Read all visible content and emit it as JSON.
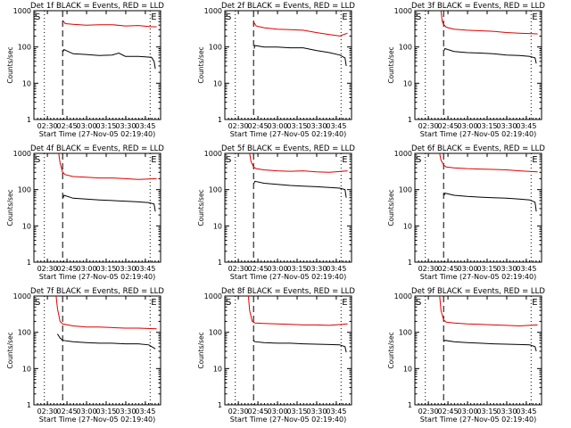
{
  "figure": {
    "ylabel": "Counts/sec",
    "xlabel": "Start Time (27-Nov-05 02:19:40)",
    "x_tick_labels": [
      "02:30",
      "02:45",
      "03:00",
      "03:15",
      "03:30",
      "03:45"
    ],
    "y_tick_labels": [
      "1",
      "10",
      "100",
      "1000"
    ],
    "marker_start": "S",
    "marker_end": "E",
    "colors": {
      "events": "#000000",
      "lld": "#dd0000",
      "axes": "#000000"
    }
  },
  "chart_data": [
    {
      "type": "line",
      "title": "Det 1f BLACK = Events, RED = LLD",
      "xlabel": "Start Time (27-Nov-05 02:19:40)",
      "ylabel": "Counts/sec",
      "x_unit": "minutes after 02:19:40",
      "xlim": [
        0,
        97
      ],
      "ylim": [
        1,
        1000
      ],
      "yscale": "log",
      "dotted_vlines": [
        8,
        89
      ],
      "dashed_vlines": [
        22
      ],
      "series": [
        {
          "x": [
            22,
            22.5,
            24,
            30,
            40,
            50,
            60,
            70,
            80,
            90,
            94
          ],
          "y": [
            480,
            520,
            440,
            420,
            400,
            410,
            410,
            380,
            390,
            360,
            360
          ]
        },
        {
          "x": [
            22.5,
            23,
            30,
            40,
            50,
            60,
            65,
            70,
            80,
            90,
            92,
            93
          ],
          "y": [
            75,
            85,
            65,
            62,
            58,
            60,
            68,
            55,
            55,
            52,
            40,
            25
          ]
        }
      ]
    },
    {
      "type": "line",
      "title": "Det 2f BLACK = Events, RED = LLD",
      "xlabel": "Start Time (27-Nov-05 02:19:40)",
      "ylabel": "Counts/sec",
      "x_unit": "minutes after 02:19:40",
      "xlim": [
        0,
        97
      ],
      "ylim": [
        1,
        1000
      ],
      "yscale": "log",
      "dotted_vlines": [
        8,
        89
      ],
      "dashed_vlines": [
        22
      ],
      "series": [
        {
          "x": [
            22,
            22.5,
            24,
            30,
            40,
            50,
            60,
            70,
            80,
            88,
            94
          ],
          "y": [
            400,
            460,
            380,
            340,
            310,
            300,
            290,
            250,
            220,
            200,
            240
          ]
        },
        {
          "x": [
            22.5,
            23,
            30,
            40,
            50,
            60,
            70,
            80,
            88,
            92,
            93
          ],
          "y": [
            90,
            110,
            100,
            100,
            95,
            95,
            80,
            70,
            60,
            50,
            30
          ]
        }
      ]
    },
    {
      "type": "line",
      "title": "Det 3f BLACK = Events, RED = LLD",
      "xlabel": "Start Time (27-Nov-05 02:19:40)",
      "ylabel": "Counts/sec",
      "x_unit": "minutes after 02:19:40",
      "xlim": [
        0,
        97
      ],
      "ylim": [
        1,
        1000
      ],
      "yscale": "log",
      "dotted_vlines": [
        8,
        89
      ],
      "dashed_vlines": [
        22
      ],
      "series": [
        {
          "x": [
            20,
            21,
            22,
            24,
            30,
            40,
            50,
            60,
            70,
            80,
            94
          ],
          "y": [
            1000,
            500,
            420,
            350,
            310,
            290,
            280,
            270,
            250,
            240,
            230
          ]
        },
        {
          "x": [
            22.5,
            23,
            30,
            40,
            50,
            60,
            70,
            80,
            88,
            92,
            93
          ],
          "y": [
            80,
            90,
            75,
            70,
            68,
            65,
            60,
            58,
            55,
            50,
            35
          ]
        }
      ]
    },
    {
      "type": "line",
      "title": "Det 4f BLACK = Events, RED = LLD",
      "xlabel": "Start Time (27-Nov-05 02:19:40)",
      "ylabel": "Counts/sec",
      "x_unit": "minutes after 02:19:40",
      "xlim": [
        0,
        97
      ],
      "ylim": [
        1,
        1000
      ],
      "yscale": "log",
      "dotted_vlines": [
        8,
        89
      ],
      "dashed_vlines": [
        22
      ],
      "series": [
        {
          "x": [
            19,
            20,
            22,
            24,
            30,
            40,
            50,
            60,
            70,
            80,
            94
          ],
          "y": [
            1000,
            550,
            300,
            260,
            230,
            220,
            210,
            210,
            200,
            190,
            200
          ]
        },
        {
          "x": [
            22.5,
            23,
            30,
            40,
            50,
            60,
            70,
            80,
            88,
            92,
            93
          ],
          "y": [
            60,
            70,
            58,
            55,
            52,
            50,
            48,
            46,
            44,
            40,
            25
          ]
        }
      ]
    },
    {
      "type": "line",
      "title": "Det 5f BLACK = Events, RED = LLD",
      "xlabel": "Start Time (27-Nov-05 02:19:40)",
      "ylabel": "Counts/sec",
      "x_unit": "minutes after 02:19:40",
      "xlim": [
        0,
        97
      ],
      "ylim": [
        1,
        1000
      ],
      "yscale": "log",
      "dotted_vlines": [
        8,
        89
      ],
      "dashed_vlines": [
        22
      ],
      "series": [
        {
          "x": [
            19,
            20,
            22,
            24,
            30,
            40,
            50,
            60,
            70,
            80,
            94
          ],
          "y": [
            1000,
            600,
            420,
            380,
            350,
            330,
            320,
            330,
            310,
            300,
            330
          ]
        },
        {
          "x": [
            22.5,
            23,
            30,
            40,
            50,
            60,
            70,
            80,
            88,
            92,
            93
          ],
          "y": [
            150,
            170,
            150,
            140,
            130,
            125,
            120,
            115,
            110,
            100,
            60
          ]
        }
      ]
    },
    {
      "type": "line",
      "title": "Det 6f BLACK = Events, RED = LLD",
      "xlabel": "Start Time (27-Nov-05 02:19:40)",
      "ylabel": "Counts/sec",
      "x_unit": "minutes after 02:19:40",
      "xlim": [
        0,
        97
      ],
      "ylim": [
        1,
        1000
      ],
      "yscale": "log",
      "dotted_vlines": [
        8,
        89
      ],
      "dashed_vlines": [
        22
      ],
      "series": [
        {
          "x": [
            19,
            20,
            22,
            24,
            30,
            40,
            50,
            60,
            70,
            80,
            94
          ],
          "y": [
            1000,
            650,
            480,
            420,
            400,
            380,
            370,
            360,
            350,
            330,
            310
          ]
        },
        {
          "x": [
            22.5,
            23,
            30,
            40,
            50,
            60,
            70,
            80,
            88,
            92,
            93
          ],
          "y": [
            70,
            80,
            70,
            65,
            62,
            60,
            58,
            55,
            52,
            45,
            25
          ]
        }
      ]
    },
    {
      "type": "line",
      "title": "Det 7f BLACK = Events, RED = LLD",
      "xlabel": "Start Time (27-Nov-05 02:19:40)",
      "ylabel": "Counts/sec",
      "x_unit": "minutes after 02:19:40",
      "xlim": [
        0,
        97
      ],
      "ylim": [
        1,
        1000
      ],
      "yscale": "log",
      "dotted_vlines": [
        8,
        89
      ],
      "dashed_vlines": [
        22
      ],
      "series": [
        {
          "x": [
            17,
            18,
            20,
            22,
            30,
            40,
            50,
            60,
            70,
            80,
            94
          ],
          "y": [
            1000,
            450,
            200,
            170,
            150,
            140,
            140,
            135,
            130,
            130,
            125
          ]
        },
        {
          "x": [
            18,
            20,
            22,
            30,
            40,
            50,
            60,
            70,
            80,
            88,
            93
          ],
          "y": [
            90,
            70,
            60,
            55,
            52,
            50,
            50,
            48,
            48,
            45,
            35
          ]
        }
      ]
    },
    {
      "type": "line",
      "title": "Det 8f BLACK = Events, RED = LLD",
      "xlabel": "Start Time (27-Nov-05 02:19:40)",
      "ylabel": "Counts/sec",
      "x_unit": "minutes after 02:19:40",
      "xlim": [
        0,
        97
      ],
      "ylim": [
        1,
        1000
      ],
      "yscale": "log",
      "dotted_vlines": [
        8,
        89
      ],
      "dashed_vlines": [
        22
      ],
      "series": [
        {
          "x": [
            18,
            19,
            21,
            23,
            30,
            40,
            50,
            60,
            70,
            80,
            94
          ],
          "y": [
            1000,
            400,
            200,
            180,
            175,
            170,
            165,
            160,
            160,
            155,
            170
          ]
        },
        {
          "x": [
            22,
            23,
            30,
            40,
            50,
            60,
            70,
            80,
            88,
            92,
            93
          ],
          "y": [
            60,
            55,
            52,
            50,
            50,
            48,
            47,
            46,
            45,
            40,
            28
          ]
        }
      ]
    },
    {
      "type": "line",
      "title": "Det 9f BLACK = Events, RED = LLD",
      "xlabel": "Start Time (27-Nov-05 02:19:40)",
      "ylabel": "Counts/sec",
      "x_unit": "minutes after 02:19:40",
      "xlim": [
        0,
        97
      ],
      "ylim": [
        1,
        1000
      ],
      "yscale": "log",
      "dotted_vlines": [
        8,
        89
      ],
      "dashed_vlines": [
        22
      ],
      "series": [
        {
          "x": [
            19,
            20,
            22,
            24,
            30,
            40,
            50,
            60,
            70,
            80,
            94
          ],
          "y": [
            1000,
            400,
            220,
            190,
            180,
            170,
            165,
            160,
            155,
            150,
            160
          ]
        },
        {
          "x": [
            22,
            23,
            30,
            40,
            50,
            60,
            70,
            80,
            88,
            92,
            93
          ],
          "y": [
            55,
            60,
            55,
            52,
            50,
            48,
            47,
            46,
            45,
            40,
            30
          ]
        }
      ]
    }
  ]
}
